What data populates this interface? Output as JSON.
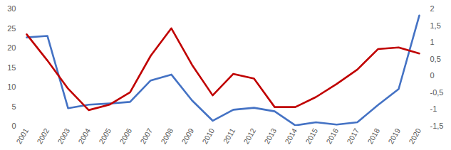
{
  "chart_data": {
    "type": "line",
    "categories": [
      "2001",
      "2002",
      "2003",
      "2004",
      "2005",
      "2006",
      "2007",
      "2008",
      "2009",
      "2010",
      "2011",
      "2012",
      "2013",
      "2014",
      "2015",
      "2016",
      "2017",
      "2018",
      "2019",
      "2020"
    ],
    "series": [
      {
        "color": "#4472c4",
        "values": [
          22.7,
          23.1,
          4.6,
          5.5,
          5.8,
          6.2,
          11.7,
          13.2,
          6.6,
          1.4,
          4.2,
          4.7,
          3.8,
          0.2,
          1.0,
          0.4,
          1.0,
          5.4,
          9.5,
          28.3
        ]
      },
      {
        "color": "#c00000",
        "axis": "y2",
        "values": [
          1.24,
          0.46,
          -0.38,
          -1.02,
          -0.86,
          -0.49,
          0.6,
          1.42,
          0.33,
          -0.58,
          0.06,
          -0.08,
          -0.93,
          -0.93,
          -0.63,
          -0.24,
          0.19,
          0.8,
          0.85,
          0.67
        ]
      }
    ],
    "ylim": [
      0,
      30
    ],
    "yticks": [
      0,
      5,
      10,
      15,
      20,
      25,
      30
    ],
    "y2lim": [
      -1.5,
      2
    ],
    "y2ticks": [
      {
        "value": -1.5,
        "label": "-1,5"
      },
      -1,
      {
        "value": -0.5,
        "label": "-0,5"
      },
      0,
      {
        "value": 0.5,
        "label": "0,5"
      },
      1,
      {
        "value": 1.5,
        "label": "1,5"
      },
      2
    ],
    "grid": false
  }
}
